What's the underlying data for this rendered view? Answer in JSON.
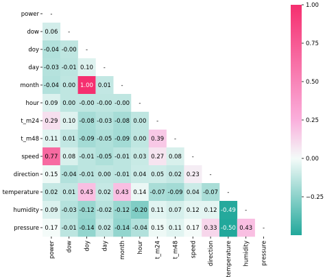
{
  "chart_data": {
    "type": "heatmap",
    "title": "",
    "variables": [
      "power",
      "dow",
      "doy",
      "day",
      "month",
      "hour",
      "t_m24",
      "t_m48",
      "speed",
      "direction",
      "temperature",
      "humidity",
      "pressure"
    ],
    "matrix": [
      [
        null
      ],
      [
        0.06,
        null
      ],
      [
        -0.04,
        -0.0,
        null
      ],
      [
        -0.03,
        -0.01,
        0.1,
        null
      ],
      [
        -0.04,
        0.0,
        1.0,
        0.01,
        null
      ],
      [
        0.09,
        0.0,
        -0.0,
        -0.0,
        -0.0,
        null
      ],
      [
        0.29,
        0.1,
        -0.08,
        -0.03,
        -0.08,
        0.0,
        null
      ],
      [
        0.11,
        0.01,
        -0.09,
        -0.05,
        -0.09,
        0.0,
        0.39,
        null
      ],
      [
        0.77,
        0.08,
        -0.01,
        -0.05,
        -0.01,
        0.03,
        0.27,
        0.08,
        null
      ],
      [
        0.15,
        -0.04,
        -0.01,
        0.0,
        -0.01,
        0.04,
        0.05,
        0.02,
        0.23,
        null
      ],
      [
        0.02,
        0.01,
        0.43,
        0.02,
        0.43,
        0.14,
        -0.07,
        -0.09,
        0.04,
        -0.07,
        null
      ],
      [
        0.09,
        -0.03,
        -0.12,
        -0.02,
        -0.12,
        -0.2,
        0.11,
        0.07,
        0.12,
        0.12,
        -0.49,
        null
      ],
      [
        0.17,
        -0.01,
        -0.14,
        0.02,
        -0.14,
        -0.04,
        0.15,
        0.11,
        0.17,
        0.33,
        -0.5,
        0.43,
        null
      ]
    ],
    "labels": [
      [
        "-"
      ],
      [
        "0.06",
        "-"
      ],
      [
        "-0.04",
        "-0.00",
        "-"
      ],
      [
        "-0.03",
        "-0.01",
        "0.10",
        "-"
      ],
      [
        "-0.04",
        "0.00",
        "1.00",
        "0.01",
        "-"
      ],
      [
        "0.09",
        "0.00",
        "-0.00",
        "-0.00",
        "-0.00",
        "-"
      ],
      [
        "0.29",
        "0.10",
        "-0.08",
        "-0.03",
        "-0.08",
        "0.00",
        "-"
      ],
      [
        "0.11",
        "0.01",
        "-0.09",
        "-0.05",
        "-0.09",
        "0.00",
        "0.39",
        "-"
      ],
      [
        "0.77",
        "0.08",
        "-0.01",
        "-0.05",
        "-0.01",
        "0.03",
        "0.27",
        "0.08",
        "-"
      ],
      [
        "0.15",
        "-0.04",
        "-0.01",
        "0.00",
        "-0.01",
        "0.04",
        "0.05",
        "0.02",
        "0.23",
        "-"
      ],
      [
        "0.02",
        "0.01",
        "0.43",
        "0.02",
        "0.43",
        "0.14",
        "-0.07",
        "-0.09",
        "0.04",
        "-0.07",
        "-"
      ],
      [
        "0.09",
        "-0.03",
        "-0.12",
        "-0.02",
        "-0.12",
        "-0.20",
        "0.11",
        "0.07",
        "0.12",
        "0.12",
        "-0.49",
        "-"
      ],
      [
        "0.17",
        "-0.01",
        "-0.14",
        "0.02",
        "-0.14",
        "-0.04",
        "0.15",
        "0.11",
        "0.17",
        "0.33",
        "-0.50",
        "0.43",
        "-"
      ]
    ],
    "colorbar": {
      "range": [
        -0.5,
        1.0
      ],
      "ticks": [
        1.0,
        0.75,
        0.5,
        0.25,
        0.0,
        -0.25
      ],
      "tick_labels": [
        "1.00",
        "0.75",
        "0.50",
        "0.25",
        "0.00",
        "−0.25"
      ],
      "colors": {
        "low": "#22a89b",
        "mid": "#f4fbf9",
        "high": "#f52f6f"
      }
    },
    "grid": false,
    "legend": "colorbar-right"
  }
}
